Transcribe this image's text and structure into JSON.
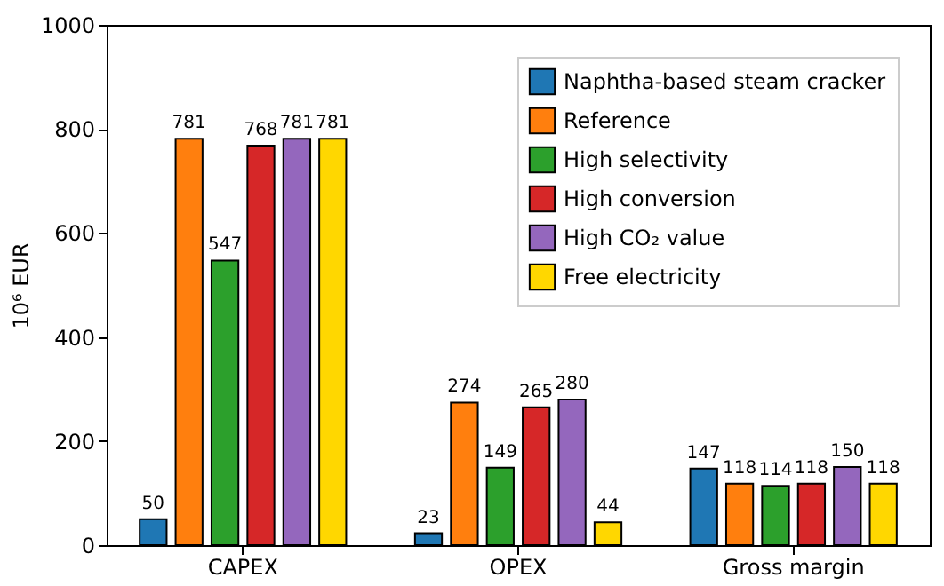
{
  "chart_data": {
    "type": "bar",
    "ylabel": "10⁶ EUR",
    "categories": [
      "CAPEX",
      "OPEX",
      "Gross margin"
    ],
    "series": [
      {
        "name": "Naphtha-based steam cracker",
        "color": "#1f77b4",
        "values": [
          50,
          23,
          147
        ]
      },
      {
        "name": "Reference",
        "color": "#ff7f0e",
        "values": [
          781,
          274,
          118
        ]
      },
      {
        "name": "High selectivity",
        "color": "#2ca02c",
        "values": [
          547,
          149,
          114
        ]
      },
      {
        "name": "High conversion",
        "color": "#d62728",
        "values": [
          768,
          265,
          118
        ]
      },
      {
        "name": "High CO₂ value",
        "color": "#9467bd",
        "values": [
          781,
          280,
          150
        ]
      },
      {
        "name": "Free electricity",
        "color": "#ffd700",
        "values": [
          781,
          44,
          118
        ]
      }
    ],
    "ylim": [
      0,
      1000
    ],
    "yticks": [
      0,
      200,
      400,
      600,
      800,
      1000
    ],
    "data_labels": true,
    "legend": "top right"
  }
}
